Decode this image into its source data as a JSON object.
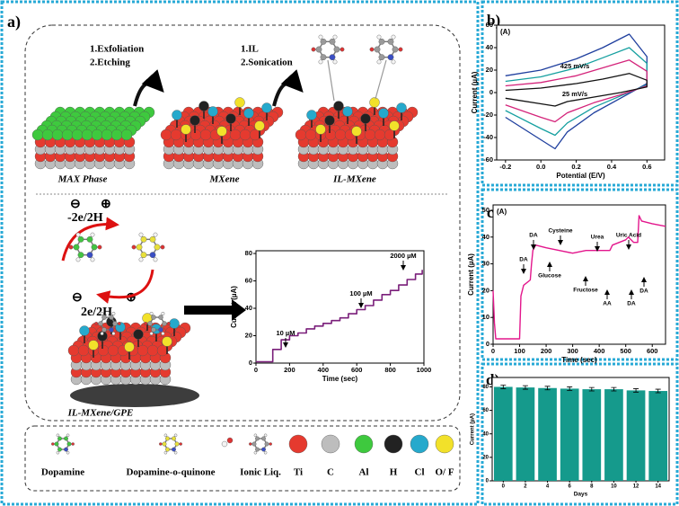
{
  "chart_data": [
    {
      "type": "line",
      "title": "(A)",
      "x_label": "Potential (E/V)",
      "y_label": "Current (µA)",
      "annotations": [
        "425 mV/s",
        "25 mV/s"
      ],
      "xlim": [
        -0.25,
        0.7
      ],
      "ylim": [
        -60,
        60
      ],
      "xticks": [
        -0.2,
        {
          "value": 0,
          "label": "0.0"
        },
        0.2,
        0.4,
        0.6
      ],
      "yticks": [
        -60,
        -40,
        -20,
        0,
        20,
        40,
        60
      ],
      "x": [
        -0.2,
        0,
        0.2,
        0.35,
        0.5,
        0.6,
        0.6,
        0.45,
        0.3,
        0.15,
        0.08,
        0,
        -0.2
      ],
      "series": [
        {
          "color": "#1f3f9e",
          "values": [
            15,
            20,
            30,
            40,
            52,
            32,
            8,
            -5,
            -18,
            -35,
            -50,
            -42,
            -22
          ]
        },
        {
          "color": "#16a0a0",
          "values": [
            10,
            14,
            22,
            31,
            40,
            26,
            7,
            -3,
            -13,
            -27,
            -38,
            -32,
            -16
          ]
        },
        {
          "color": "#d4237a",
          "values": [
            6,
            9,
            15,
            22,
            29,
            19,
            6,
            -2,
            -9,
            -18,
            -26,
            -22,
            -11
          ]
        },
        {
          "color": "#111111",
          "values": [
            2,
            4,
            8,
            12,
            17,
            11,
            5,
            0,
            -4,
            -8,
            -12,
            -10,
            -5
          ]
        }
      ]
    },
    {
      "type": "line",
      "title": "(A)",
      "x_label": "Time (sec)",
      "y_label": "Current (µA)",
      "annotations": [
        "DA",
        "DA",
        "Cysteine",
        "Glucose",
        "Urea",
        "Fructose",
        "AA",
        "Uric Acid",
        "DA",
        "DA"
      ],
      "xlim": [
        0,
        650
      ],
      "ylim": [
        0,
        52
      ],
      "xticks": [
        0,
        100,
        200,
        300,
        400,
        500,
        600
      ],
      "yticks": [
        0,
        10,
        20,
        30,
        40,
        50
      ],
      "color": "#e3168c",
      "x": [
        0,
        5,
        10,
        100,
        105,
        115,
        140,
        145,
        150,
        160,
        200,
        250,
        300,
        350,
        400,
        440,
        450,
        500,
        510,
        530,
        545,
        550,
        560,
        600,
        650
      ],
      "values": [
        20,
        8,
        2,
        2,
        18,
        22,
        24,
        30,
        35,
        37,
        36,
        35,
        34,
        35,
        35,
        35,
        37,
        39,
        40,
        38,
        38,
        48,
        46,
        45,
        44
      ]
    },
    {
      "type": "line",
      "x_label": "Time (sec)",
      "y_label": "Current (µA)",
      "annotations": [
        "10 µM",
        "100 µM",
        "2000 µM"
      ],
      "xlim": [
        0,
        1000
      ],
      "ylim": [
        0,
        82
      ],
      "xticks": [
        0,
        200,
        400,
        600,
        800,
        1000
      ],
      "yticks": [
        0,
        20,
        40,
        60,
        80
      ],
      "color": "#7a1f7a",
      "x": [
        0,
        100,
        100,
        150,
        150,
        200,
        200,
        250,
        250,
        300,
        300,
        350,
        350,
        400,
        400,
        450,
        450,
        500,
        500,
        550,
        550,
        600,
        600,
        650,
        650,
        700,
        700,
        750,
        750,
        800,
        800,
        850,
        850,
        900,
        900,
        950,
        950,
        990,
        990
      ],
      "values": [
        1,
        1,
        10,
        10,
        17,
        17,
        20,
        20,
        22,
        22,
        25,
        25,
        27,
        27,
        29,
        29,
        31,
        31,
        33,
        33,
        36,
        36,
        39,
        39,
        42,
        42,
        46,
        46,
        50,
        50,
        53,
        53,
        57,
        57,
        61,
        61,
        65,
        65,
        68
      ]
    },
    {
      "type": "bar",
      "x_label": "Days",
      "y_label": "Current (µA)",
      "categories": [
        "0",
        "2",
        "4",
        "6",
        "8",
        "10",
        "12",
        "14"
      ],
      "values": [
        80,
        79.5,
        79,
        78.5,
        78,
        78,
        77,
        76.5
      ],
      "errors": [
        1.5,
        1.5,
        1.5,
        1.5,
        1.5,
        1.5,
        1.5,
        1.5
      ],
      "color": "#159a8c",
      "ylim": [
        0,
        88
      ],
      "yticks": [
        0,
        20,
        40,
        60,
        80
      ]
    }
  ],
  "diagram": {
    "panel_labels": [
      "a)",
      "b)",
      "c)",
      "d)"
    ],
    "step1": [
      "1.Exfoliation",
      "2.Etching"
    ],
    "step2": [
      "1.IL",
      "2.Sonication"
    ],
    "phases": [
      "MAX Phase",
      "MXene",
      "IL-MXene"
    ],
    "signs": [
      "⊖",
      "⊕"
    ],
    "oxidation": "-2e/2H",
    "reduction": "2e/2H",
    "electrode": "IL-MXene/GPE",
    "legend": [
      "Dopamine",
      "Dopamine-o-quinone",
      "Ionic Liq.",
      "Ti",
      "C",
      "Al",
      "H",
      "Cl",
      "O/ F"
    ]
  }
}
